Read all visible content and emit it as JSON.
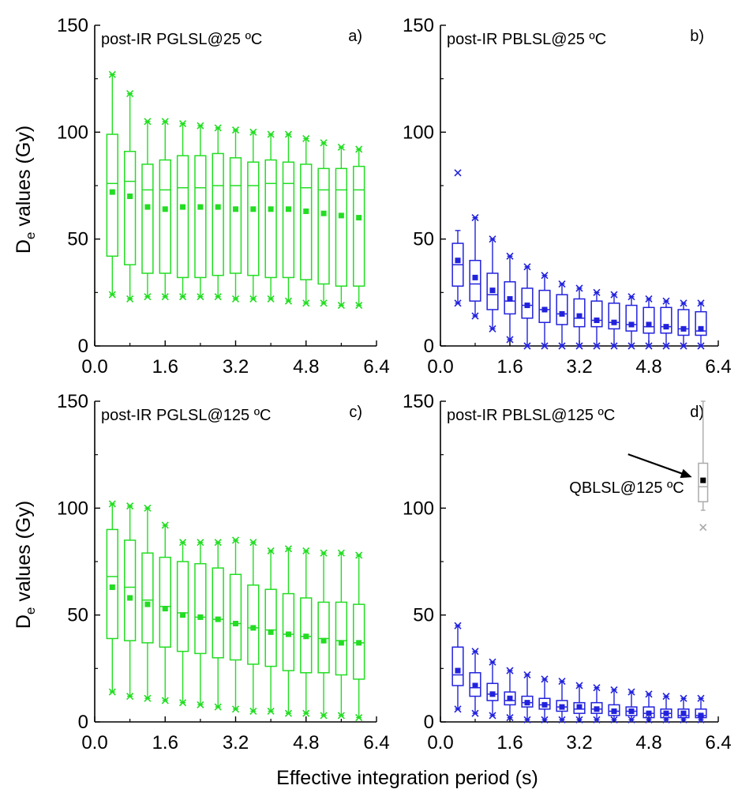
{
  "figure": {
    "x_axis_title": "Effective integration period (s)",
    "y_axis_title_main": "D",
    "y_axis_title_sub": "e",
    "y_axis_title_rest": " values (Gy)"
  },
  "chart_data": [
    {
      "type": "box",
      "title": "post-IR PGLSL@25 ºC",
      "panel_letter": "a)",
      "xlim": [
        0,
        6.4
      ],
      "ylim": [
        0,
        150
      ],
      "xticks": [
        "0.0",
        "1.6",
        "3.2",
        "4.8",
        "6.4"
      ],
      "yticks": [
        "0",
        "50",
        "100",
        "150"
      ],
      "color": "#22dd22",
      "x": [
        0.4,
        0.8,
        1.2,
        1.6,
        2.0,
        2.4,
        2.8,
        3.2,
        3.6,
        4.0,
        4.4,
        4.8,
        5.2,
        5.6,
        6.0
      ],
      "boxes": [
        {
          "min": 24,
          "q1": 42,
          "median": 76,
          "mean": 72,
          "q3": 99,
          "max": 127
        },
        {
          "min": 22,
          "q1": 38,
          "median": 77,
          "mean": 70,
          "q3": 91,
          "max": 118
        },
        {
          "min": 23,
          "q1": 34,
          "median": 73,
          "mean": 65,
          "q3": 85,
          "max": 105
        },
        {
          "min": 23,
          "q1": 34,
          "median": 73,
          "mean": 64,
          "q3": 87,
          "max": 105
        },
        {
          "min": 23,
          "q1": 32,
          "median": 74,
          "mean": 65,
          "q3": 89,
          "max": 104
        },
        {
          "min": 23,
          "q1": 32,
          "median": 74,
          "mean": 65,
          "q3": 89,
          "max": 103
        },
        {
          "min": 23,
          "q1": 33,
          "median": 75,
          "mean": 65,
          "q3": 90,
          "max": 102
        },
        {
          "min": 22,
          "q1": 34,
          "median": 75,
          "mean": 64,
          "q3": 88,
          "max": 101
        },
        {
          "min": 22,
          "q1": 33,
          "median": 75,
          "mean": 64,
          "q3": 86,
          "max": 100
        },
        {
          "min": 22,
          "q1": 32,
          "median": 76,
          "mean": 64,
          "q3": 87,
          "max": 99
        },
        {
          "min": 21,
          "q1": 32,
          "median": 76,
          "mean": 64,
          "q3": 86,
          "max": 99
        },
        {
          "min": 20,
          "q1": 31,
          "median": 74,
          "mean": 63,
          "q3": 85,
          "max": 97
        },
        {
          "min": 20,
          "q1": 29,
          "median": 73,
          "mean": 62,
          "q3": 83,
          "max": 95
        },
        {
          "min": 19,
          "q1": 28,
          "median": 73,
          "mean": 61,
          "q3": 83,
          "max": 93
        },
        {
          "min": 19,
          "q1": 28,
          "median": 73,
          "mean": 60,
          "q3": 84,
          "max": 92
        }
      ]
    },
    {
      "type": "box",
      "title": "post-IR PBLSL@25 ºC",
      "panel_letter": "b)",
      "xlim": [
        0,
        6.4
      ],
      "ylim": [
        0,
        150
      ],
      "xticks": [
        "0.0",
        "1.6",
        "3.2",
        "4.8",
        "6.4"
      ],
      "yticks": [
        "0",
        "50",
        "100",
        "150"
      ],
      "color": "#2222dd",
      "x": [
        0.4,
        0.8,
        1.2,
        1.6,
        2.0,
        2.4,
        2.8,
        3.2,
        3.6,
        4.0,
        4.4,
        4.8,
        5.2,
        5.6,
        6.0
      ],
      "boxes": [
        {
          "min": 20,
          "whisker_low": 20,
          "q1": 28,
          "median": 38,
          "mean": 40,
          "q3": 48,
          "whisker_high": 54,
          "max": 81
        },
        {
          "min": 14,
          "whisker_low": 14,
          "q1": 21,
          "median": 29,
          "mean": 32,
          "q3": 40,
          "whisker_high": 60,
          "max": 60
        },
        {
          "min": 8,
          "whisker_low": 8,
          "q1": 17,
          "median": 24,
          "mean": 26,
          "q3": 34,
          "whisker_high": 50,
          "max": 50
        },
        {
          "min": 3,
          "whisker_low": 3,
          "q1": 15,
          "median": 21,
          "mean": 22,
          "q3": 30,
          "whisker_high": 42,
          "max": 42
        },
        {
          "min": 0,
          "whisker_low": 0,
          "q1": 13,
          "median": 19,
          "mean": 19,
          "q3": 27,
          "whisker_high": 37,
          "max": 37
        },
        {
          "min": 0,
          "whisker_low": 0,
          "q1": 11,
          "median": 17,
          "mean": 17,
          "q3": 26,
          "whisker_high": 33,
          "max": 33
        },
        {
          "min": 0,
          "whisker_low": 0,
          "q1": 10,
          "median": 15,
          "mean": 15,
          "q3": 24,
          "whisker_high": 29,
          "max": 29
        },
        {
          "min": 0,
          "whisker_low": 0,
          "q1": 9,
          "median": 13,
          "mean": 14,
          "q3": 22,
          "whisker_high": 27,
          "max": 27
        },
        {
          "min": 0,
          "whisker_low": 0,
          "q1": 9,
          "median": 12,
          "mean": 12,
          "q3": 21,
          "whisker_high": 25,
          "max": 25
        },
        {
          "min": 0,
          "whisker_low": 0,
          "q1": 8,
          "median": 11,
          "mean": 11,
          "q3": 20,
          "whisker_high": 24,
          "max": 24
        },
        {
          "min": 0,
          "whisker_low": 0,
          "q1": 7,
          "median": 10,
          "mean": 10,
          "q3": 19,
          "whisker_high": 23,
          "max": 23
        },
        {
          "min": 0,
          "whisker_low": 0,
          "q1": 6,
          "median": 9,
          "mean": 10,
          "q3": 18,
          "whisker_high": 22,
          "max": 22
        },
        {
          "min": 0,
          "whisker_low": 0,
          "q1": 6,
          "median": 9,
          "mean": 9,
          "q3": 18,
          "whisker_high": 21,
          "max": 21
        },
        {
          "min": 0,
          "whisker_low": 0,
          "q1": 5,
          "median": 8,
          "mean": 8,
          "q3": 17,
          "whisker_high": 20,
          "max": 20
        },
        {
          "min": 0,
          "whisker_low": 0,
          "q1": 5,
          "median": 7,
          "mean": 8,
          "q3": 16,
          "whisker_high": 20,
          "max": 20
        }
      ]
    },
    {
      "type": "box",
      "title": "post-IR PGLSL@125 ºC",
      "panel_letter": "c)",
      "xlim": [
        0,
        6.4
      ],
      "ylim": [
        0,
        150
      ],
      "xticks": [
        "0.0",
        "1.6",
        "3.2",
        "4.8",
        "6.4"
      ],
      "yticks": [
        "0",
        "50",
        "100",
        "150"
      ],
      "color": "#22dd22",
      "x": [
        0.4,
        0.8,
        1.2,
        1.6,
        2.0,
        2.4,
        2.8,
        3.2,
        3.6,
        4.0,
        4.4,
        4.8,
        5.2,
        5.6,
        6.0
      ],
      "boxes": [
        {
          "min": 14,
          "q1": 39,
          "median": 68,
          "mean": 63,
          "q3": 90,
          "max": 102
        },
        {
          "min": 12,
          "q1": 38,
          "median": 63,
          "mean": 58,
          "q3": 85,
          "max": 101
        },
        {
          "min": 11,
          "q1": 37,
          "median": 57,
          "mean": 55,
          "q3": 79,
          "max": 100
        },
        {
          "min": 10,
          "q1": 35,
          "median": 54,
          "mean": 53,
          "q3": 77,
          "max": 92
        },
        {
          "min": 9,
          "q1": 33,
          "median": 51,
          "mean": 50,
          "q3": 75,
          "max": 84
        },
        {
          "min": 8,
          "q1": 32,
          "median": 49,
          "mean": 49,
          "q3": 74,
          "max": 84
        },
        {
          "min": 7,
          "q1": 30,
          "median": 48,
          "mean": 48,
          "q3": 72,
          "max": 84
        },
        {
          "min": 6,
          "q1": 29,
          "median": 46,
          "mean": 46,
          "q3": 69,
          "max": 85
        },
        {
          "min": 5,
          "q1": 27,
          "median": 44,
          "mean": 44,
          "q3": 64,
          "max": 84
        },
        {
          "min": 5,
          "q1": 26,
          "median": 43,
          "mean": 42,
          "q3": 62,
          "max": 80
        },
        {
          "min": 4,
          "q1": 24,
          "median": 41,
          "mean": 41,
          "q3": 60,
          "max": 81
        },
        {
          "min": 4,
          "q1": 23,
          "median": 40,
          "mean": 40,
          "q3": 58,
          "max": 80
        },
        {
          "min": 3,
          "q1": 23,
          "median": 39,
          "mean": 38,
          "q3": 56,
          "max": 79
        },
        {
          "min": 3,
          "q1": 22,
          "median": 38,
          "mean": 37,
          "q3": 56,
          "max": 79
        },
        {
          "min": 2,
          "q1": 20,
          "median": 37,
          "mean": 37,
          "q3": 55,
          "max": 78
        }
      ]
    },
    {
      "type": "box",
      "title": "post-IR PBLSL@125 ºC",
      "panel_letter": "d)",
      "xlim": [
        0,
        6.4
      ],
      "ylim": [
        0,
        150
      ],
      "xticks": [
        "0.0",
        "1.6",
        "3.2",
        "4.8",
        "6.4"
      ],
      "yticks": [
        "0",
        "50",
        "100",
        "150"
      ],
      "color": "#2222dd",
      "x": [
        0.4,
        0.8,
        1.2,
        1.6,
        2.0,
        2.4,
        2.8,
        3.2,
        3.6,
        4.0,
        4.4,
        4.8,
        5.2,
        5.6,
        6.0
      ],
      "boxes": [
        {
          "min": 6,
          "q1": 17,
          "median": 22,
          "mean": 24,
          "q3": 35,
          "max": 45
        },
        {
          "min": 4,
          "q1": 12,
          "median": 16,
          "mean": 17,
          "q3": 23,
          "max": 33
        },
        {
          "min": 3,
          "q1": 10,
          "median": 13,
          "mean": 13,
          "q3": 18,
          "max": 28
        },
        {
          "min": 2,
          "q1": 8,
          "median": 10,
          "mean": 11,
          "q3": 14,
          "max": 24
        },
        {
          "min": 1,
          "q1": 7,
          "median": 9,
          "mean": 9,
          "q3": 12,
          "max": 22
        },
        {
          "min": 1,
          "q1": 6,
          "median": 8,
          "mean": 8,
          "q3": 11,
          "max": 20
        },
        {
          "min": 1,
          "q1": 5,
          "median": 7,
          "mean": 7,
          "q3": 10,
          "max": 19
        },
        {
          "min": 1,
          "q1": 4,
          "median": 6,
          "mean": 7,
          "q3": 9,
          "max": 17
        },
        {
          "min": 1,
          "q1": 4,
          "median": 6,
          "mean": 6,
          "q3": 9,
          "max": 16
        },
        {
          "min": 1,
          "q1": 3,
          "median": 5,
          "mean": 5,
          "q3": 8,
          "max": 15
        },
        {
          "min": 1,
          "q1": 3,
          "median": 5,
          "mean": 5,
          "q3": 7,
          "max": 14
        },
        {
          "min": 1,
          "q1": 2,
          "median": 4,
          "mean": 4,
          "q3": 7,
          "max": 13
        },
        {
          "min": 1,
          "q1": 2,
          "median": 4,
          "mean": 4,
          "q3": 6,
          "max": 12
        },
        {
          "min": 1,
          "q1": 2,
          "median": 3,
          "mean": 4,
          "q3": 6,
          "max": 11
        },
        {
          "min": 1,
          "q1": 2,
          "median": 3,
          "mean": 3,
          "q3": 6,
          "max": 11
        }
      ],
      "extra_box": {
        "label": "QBLSL@125 ºC",
        "color": "#000000",
        "box_color": "#aaaaaa",
        "x": 6.05,
        "min": 91,
        "whisker_low": 99,
        "q1": 103,
        "median": 110,
        "mean": 113,
        "q3": 121,
        "whisker_high": 150
      }
    }
  ]
}
